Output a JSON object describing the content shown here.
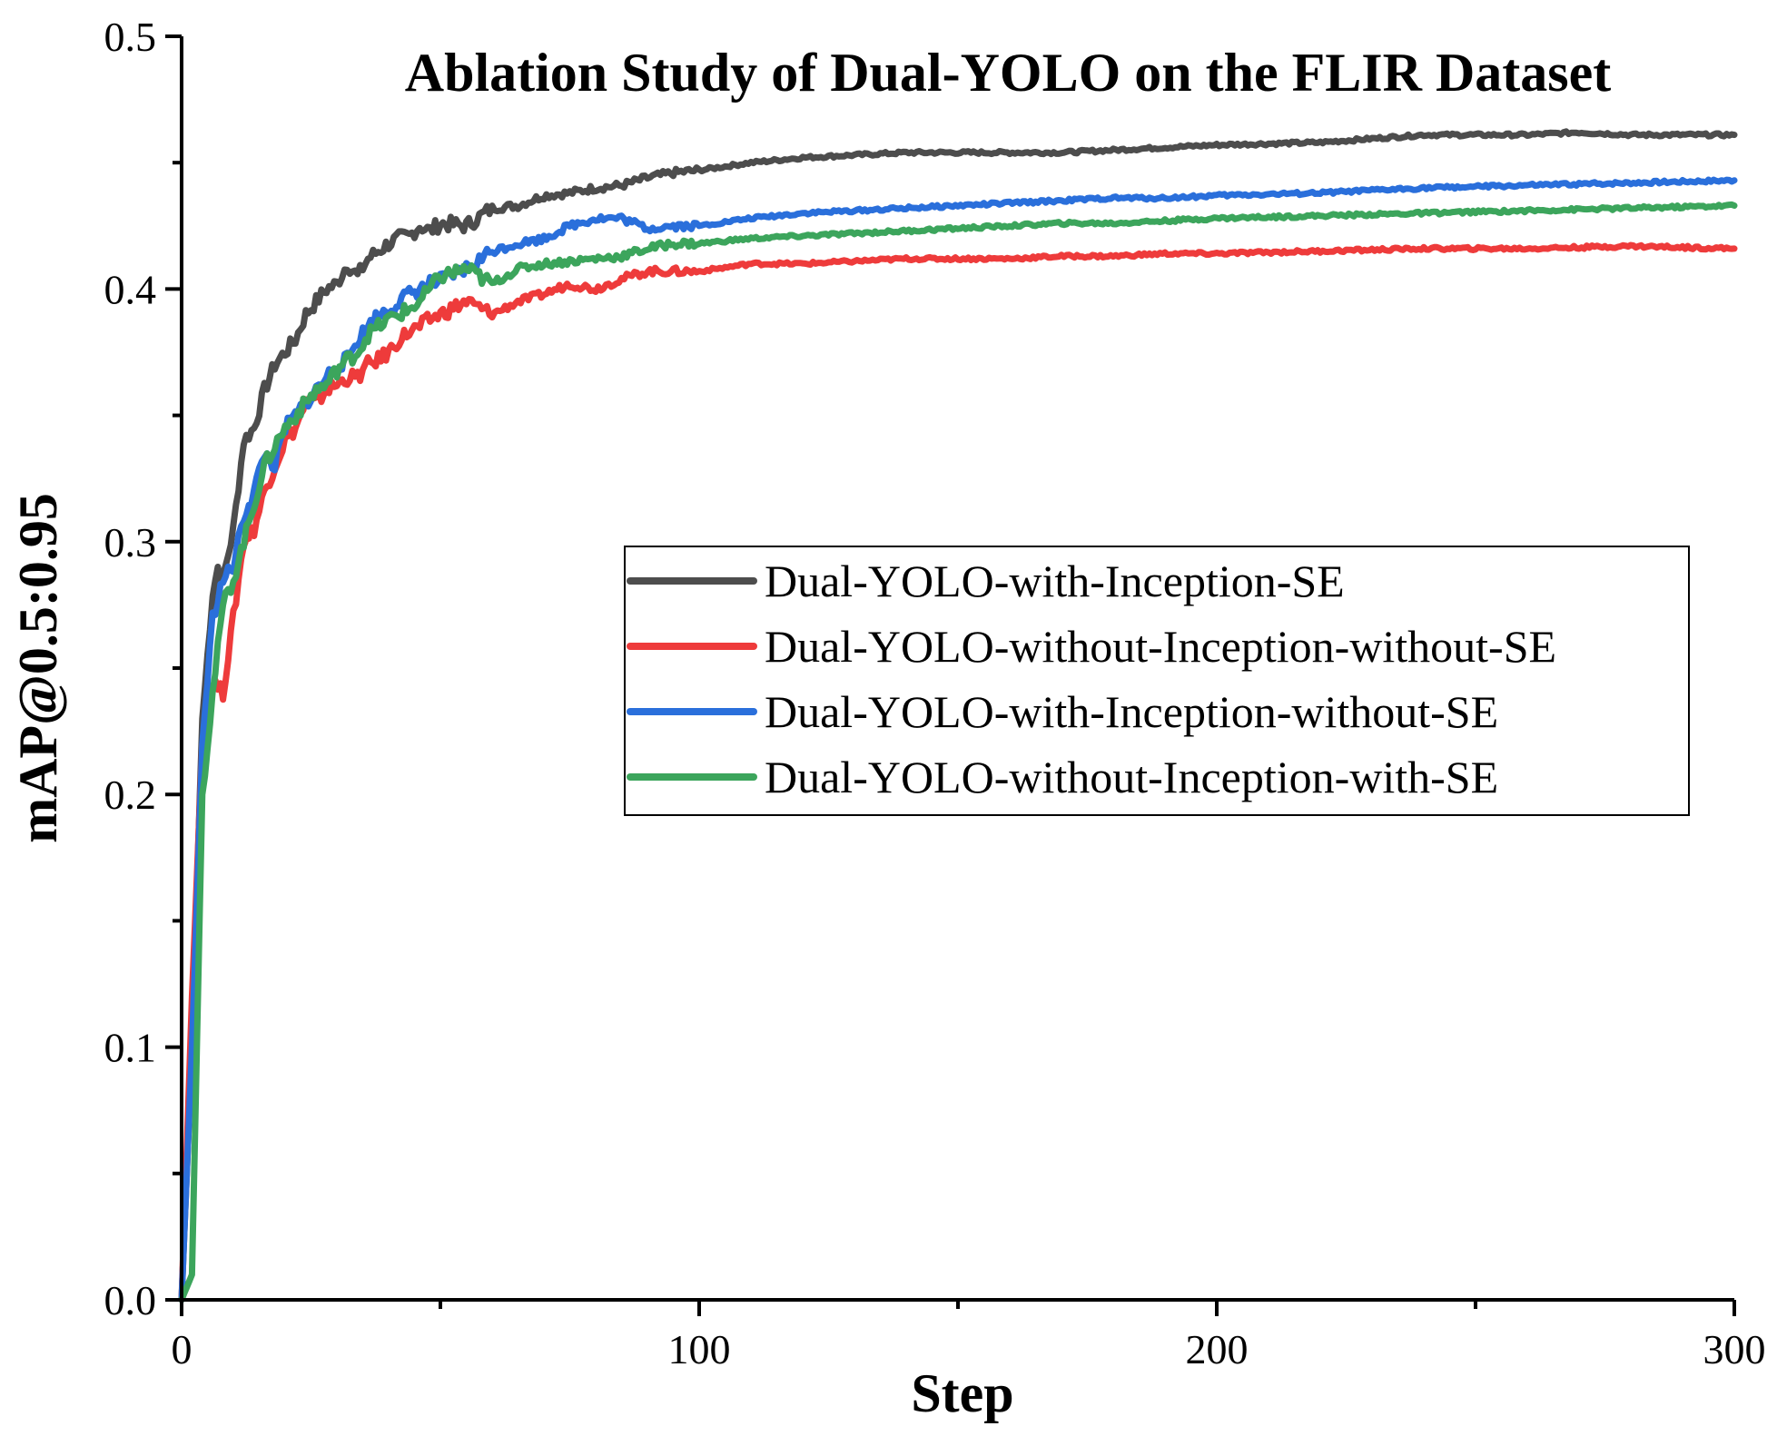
{
  "chart_data": {
    "type": "line",
    "title": "Ablation Study of Dual-YOLO on the FLIR Dataset",
    "xlabel": "Step",
    "ylabel": "mAP@0.5:0.95",
    "xlim": [
      0,
      300
    ],
    "ylim": [
      0,
      0.5
    ],
    "xticks": [
      0,
      100,
      200,
      300
    ],
    "xtick_labels": [
      "0",
      "100",
      "200",
      "300"
    ],
    "yticks": [
      0.0,
      0.1,
      0.2,
      0.3,
      0.4,
      0.5
    ],
    "ytick_labels": [
      "0.0",
      "0.1",
      "0.2",
      "0.3",
      "0.4",
      "0.5"
    ],
    "grid": false,
    "legend_position": "center-right",
    "series": [
      {
        "name": "Dual-YOLO-with-Inception-SE",
        "color": "#4d4d4d",
        "x": [
          0,
          2,
          4,
          6,
          7,
          8,
          10,
          12,
          14,
          16,
          18,
          20,
          22,
          24,
          26,
          28,
          30,
          32,
          34,
          36,
          38,
          40,
          42,
          44,
          46,
          48,
          50,
          55,
          60,
          65,
          70,
          75,
          80,
          85,
          90,
          95,
          100,
          110,
          120,
          130,
          140,
          150,
          160,
          170,
          180,
          190,
          200,
          220,
          240,
          260,
          270,
          280,
          290,
          300
        ],
        "values": [
          0.0,
          0.1,
          0.23,
          0.28,
          0.29,
          0.285,
          0.305,
          0.34,
          0.345,
          0.36,
          0.37,
          0.375,
          0.38,
          0.39,
          0.395,
          0.4,
          0.402,
          0.41,
          0.405,
          0.412,
          0.415,
          0.418,
          0.42,
          0.421,
          0.425,
          0.423,
          0.426,
          0.425,
          0.432,
          0.433,
          0.437,
          0.438,
          0.44,
          0.441,
          0.444,
          0.446,
          0.447,
          0.45,
          0.452,
          0.453,
          0.454,
          0.454,
          0.454,
          0.454,
          0.455,
          0.456,
          0.457,
          0.458,
          0.461,
          0.461,
          0.462,
          0.461,
          0.461,
          0.461
        ]
      },
      {
        "name": "Dual-YOLO-without-Inception-without-SE",
        "color": "#ee3b3b",
        "x": [
          0,
          2,
          4,
          6,
          8,
          10,
          12,
          14,
          16,
          18,
          20,
          22,
          24,
          26,
          28,
          30,
          32,
          34,
          36,
          38,
          40,
          42,
          44,
          46,
          48,
          50,
          55,
          60,
          65,
          70,
          75,
          80,
          85,
          90,
          95,
          100,
          110,
          120,
          130,
          140,
          150,
          160,
          170,
          180,
          190,
          200,
          220,
          240,
          260,
          280,
          300
        ],
        "values": [
          0.0,
          0.12,
          0.22,
          0.245,
          0.24,
          0.27,
          0.3,
          0.305,
          0.32,
          0.33,
          0.34,
          0.345,
          0.355,
          0.355,
          0.36,
          0.362,
          0.365,
          0.365,
          0.37,
          0.372,
          0.375,
          0.38,
          0.383,
          0.385,
          0.388,
          0.39,
          0.395,
          0.39,
          0.395,
          0.398,
          0.402,
          0.4,
          0.404,
          0.407,
          0.407,
          0.407,
          0.41,
          0.41,
          0.411,
          0.412,
          0.412,
          0.412,
          0.413,
          0.413,
          0.414,
          0.414,
          0.415,
          0.416,
          0.416,
          0.417,
          0.416
        ]
      },
      {
        "name": "Dual-YOLO-with-Inception-without-SE",
        "color": "#2a6fdb",
        "x": [
          0,
          2,
          4,
          6,
          8,
          10,
          12,
          14,
          16,
          18,
          20,
          22,
          24,
          26,
          28,
          30,
          32,
          34,
          36,
          38,
          40,
          42,
          44,
          46,
          48,
          50,
          55,
          60,
          65,
          70,
          75,
          80,
          85,
          90,
          95,
          100,
          110,
          120,
          130,
          140,
          150,
          160,
          170,
          180,
          190,
          200,
          220,
          240,
          260,
          280,
          300
        ],
        "values": [
          0.0,
          0.1,
          0.22,
          0.27,
          0.285,
          0.29,
          0.31,
          0.32,
          0.335,
          0.33,
          0.345,
          0.35,
          0.355,
          0.36,
          0.365,
          0.37,
          0.372,
          0.38,
          0.385,
          0.39,
          0.392,
          0.395,
          0.398,
          0.4,
          0.402,
          0.403,
          0.408,
          0.415,
          0.418,
          0.42,
          0.425,
          0.428,
          0.428,
          0.424,
          0.425,
          0.425,
          0.428,
          0.43,
          0.431,
          0.432,
          0.433,
          0.434,
          0.435,
          0.436,
          0.436,
          0.437,
          0.438,
          0.44,
          0.441,
          0.442,
          0.443
        ]
      },
      {
        "name": "Dual-YOLO-without-Inception-with-SE",
        "color": "#3ca55c",
        "x": [
          0,
          2,
          4,
          6,
          8,
          10,
          12,
          14,
          16,
          18,
          20,
          22,
          24,
          26,
          28,
          30,
          32,
          34,
          36,
          38,
          40,
          42,
          44,
          46,
          48,
          50,
          55,
          60,
          65,
          70,
          75,
          80,
          85,
          90,
          95,
          100,
          110,
          120,
          130,
          140,
          150,
          160,
          170,
          180,
          190,
          200,
          220,
          240,
          260,
          280,
          300
        ],
        "values": [
          0.0,
          0.01,
          0.2,
          0.24,
          0.275,
          0.285,
          0.3,
          0.315,
          0.33,
          0.338,
          0.345,
          0.35,
          0.355,
          0.36,
          0.362,
          0.368,
          0.372,
          0.375,
          0.382,
          0.385,
          0.388,
          0.39,
          0.392,
          0.395,
          0.4,
          0.405,
          0.408,
          0.402,
          0.408,
          0.41,
          0.411,
          0.412,
          0.413,
          0.416,
          0.418,
          0.418,
          0.42,
          0.421,
          0.422,
          0.423,
          0.424,
          0.425,
          0.426,
          0.426,
          0.427,
          0.428,
          0.429,
          0.43,
          0.431,
          0.432,
          0.433
        ]
      }
    ]
  }
}
